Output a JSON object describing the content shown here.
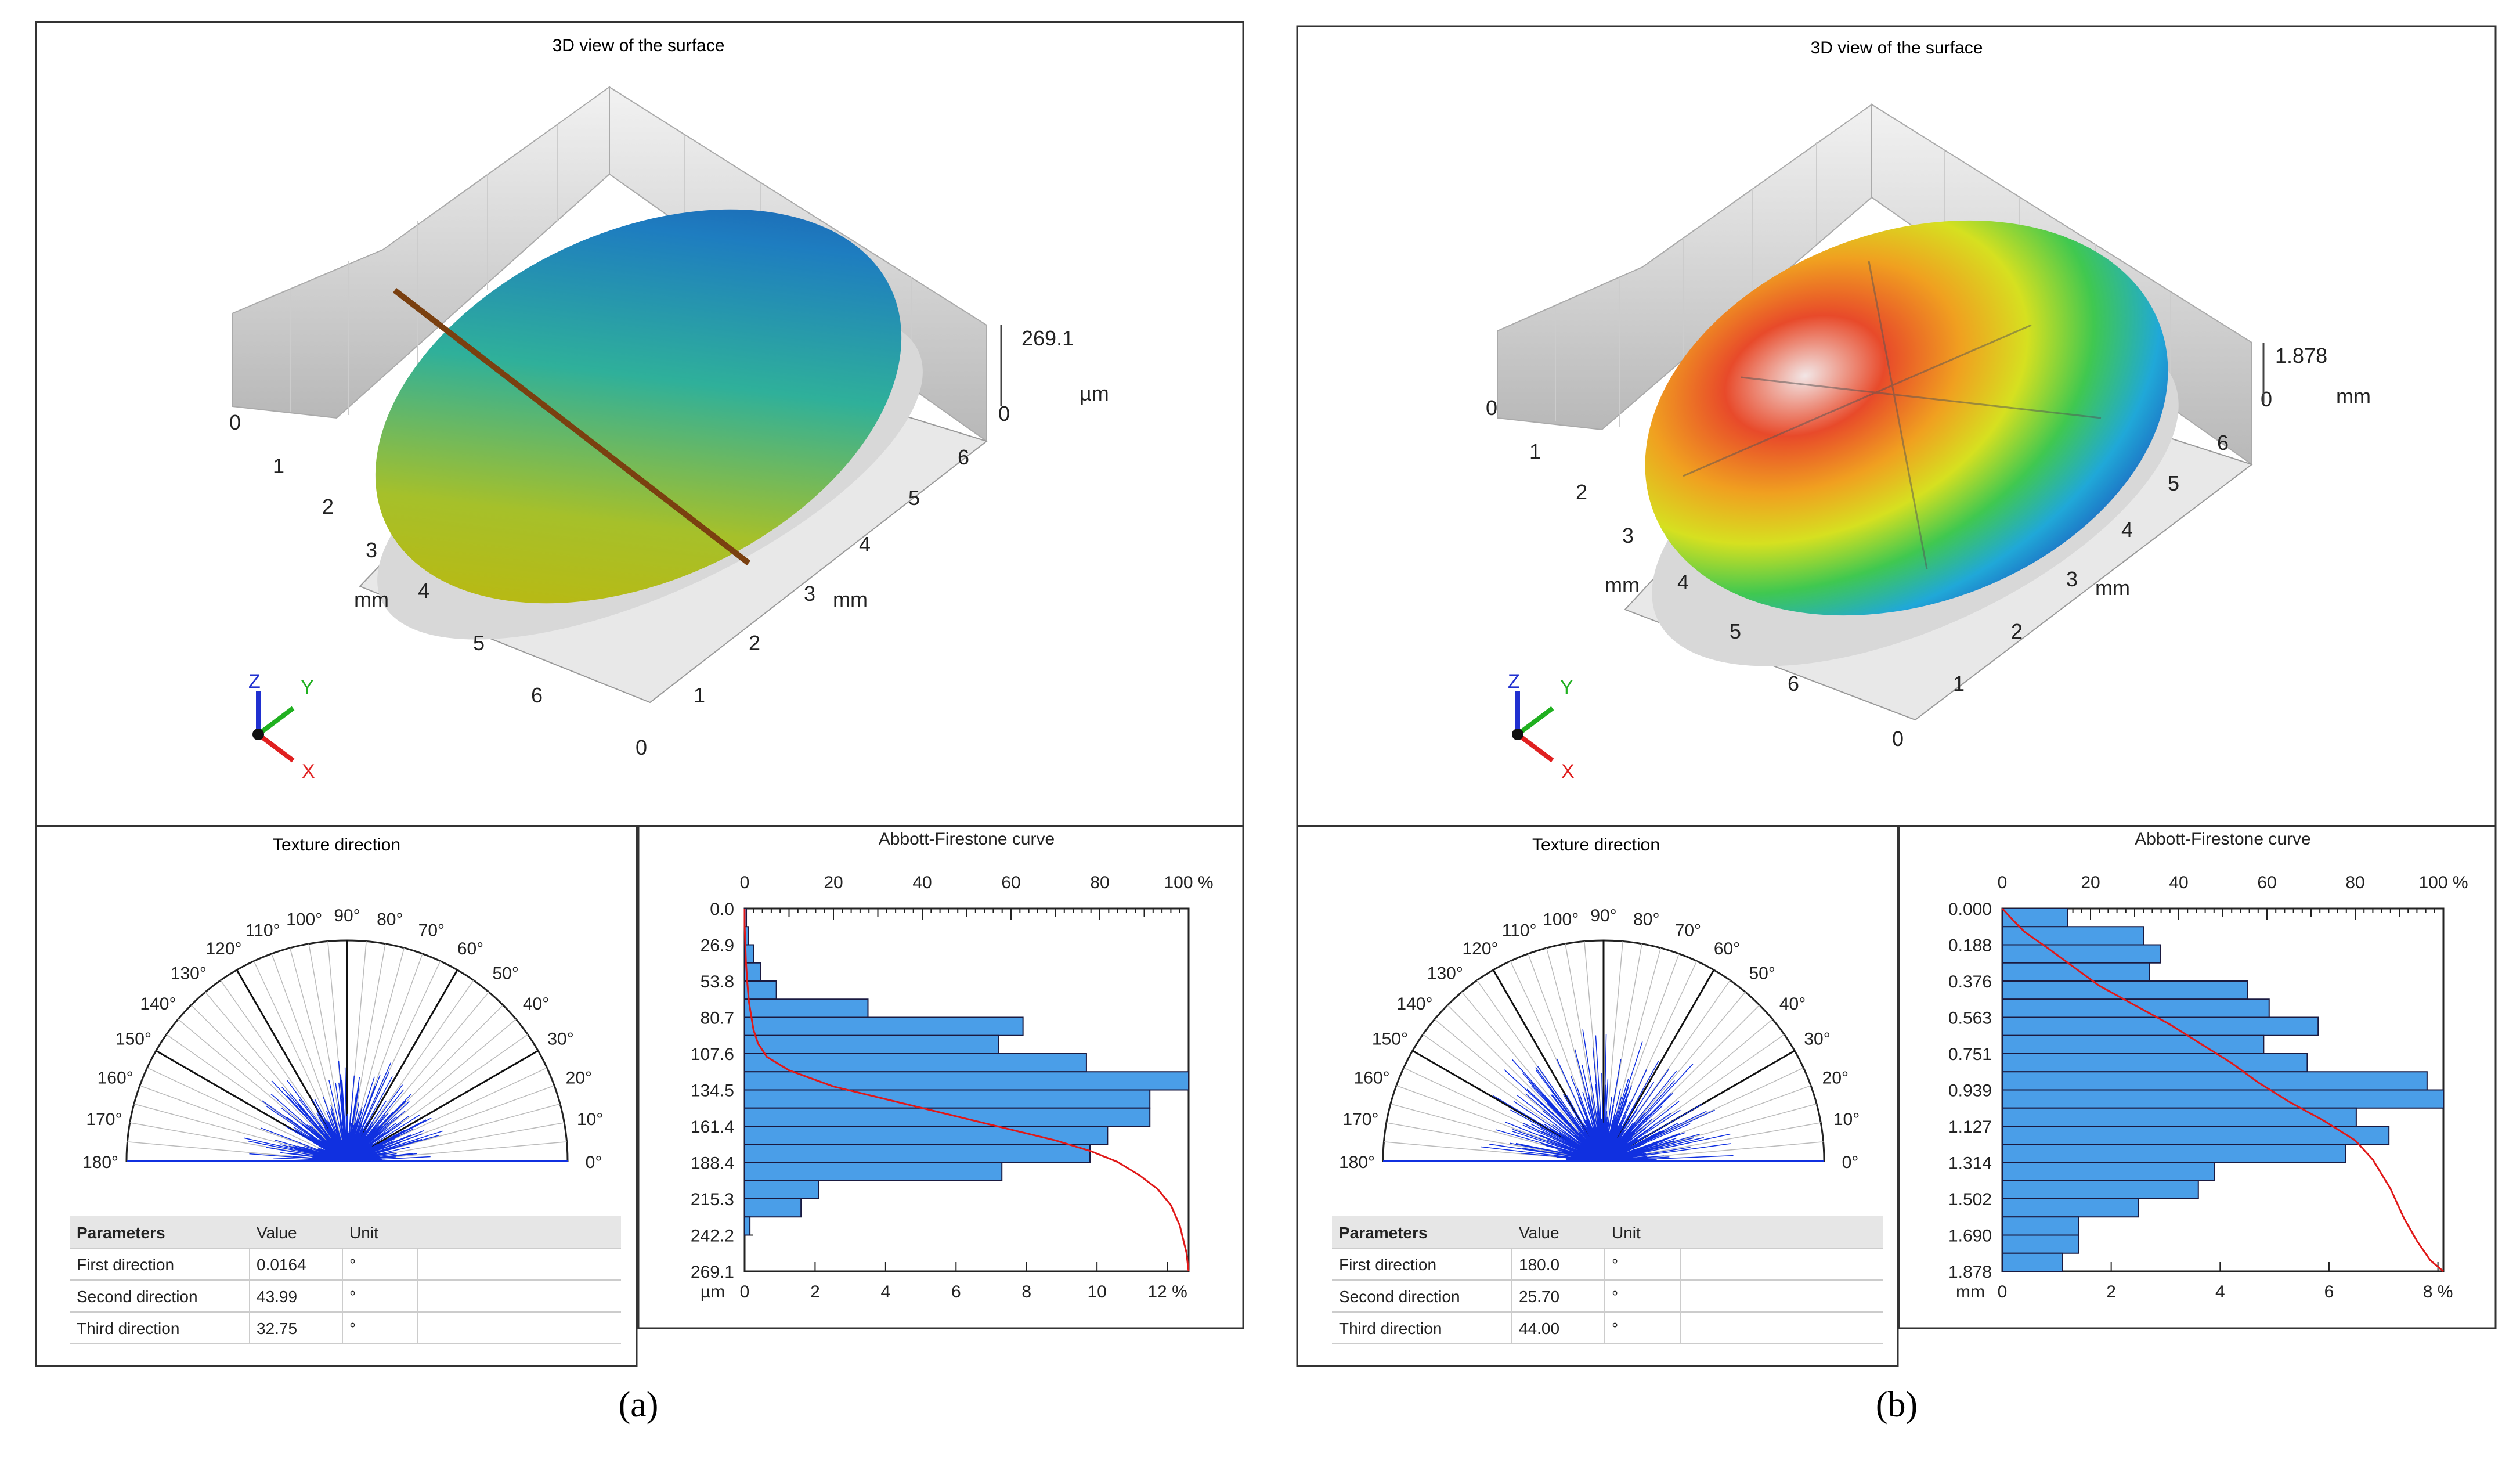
{
  "panels": [
    {
      "caption": "(a)",
      "surface": {
        "title": "3D view of the surface",
        "z_max_label": "269.1",
        "z_min_label": "0",
        "z_unit": "µm",
        "x_ticks": [
          "0",
          "1",
          "2",
          "3",
          "4",
          "5",
          "6"
        ],
        "y_ticks": [
          "0",
          "1",
          "2",
          "3",
          "4",
          "5",
          "6"
        ],
        "x_unit": "mm",
        "y_unit": "mm",
        "axes": [
          "Z",
          "Y",
          "X"
        ]
      },
      "texture": {
        "title": "Texture direction",
        "angles": [
          "0°",
          "10°",
          "20°",
          "30°",
          "40°",
          "50°",
          "60°",
          "70°",
          "80°",
          "90°",
          "100°",
          "110°",
          "120°",
          "130°",
          "140°",
          "150°",
          "160°",
          "170°",
          "180°"
        ],
        "headers": [
          "Parameters",
          "Value",
          "Unit"
        ],
        "rows": [
          {
            "name": "First  direction",
            "value": "0.0164",
            "unit": "°"
          },
          {
            "name": "Second  direction",
            "value": "43.99",
            "unit": "°"
          },
          {
            "name": "Third  direction",
            "value": "32.75",
            "unit": "°"
          }
        ]
      }
    },
    {
      "caption": "(b)",
      "surface": {
        "title": "3D view of the surface",
        "z_max_label": "1.878",
        "z_min_label": "0",
        "z_unit": "mm",
        "x_ticks": [
          "0",
          "1",
          "2",
          "3",
          "4",
          "5",
          "6"
        ],
        "y_ticks": [
          "0",
          "1",
          "2",
          "3",
          "4",
          "5",
          "6"
        ],
        "x_unit": "mm",
        "y_unit": "mm",
        "axes": [
          "Z",
          "Y",
          "X"
        ]
      },
      "texture": {
        "title": "Texture direction",
        "angles": [
          "0°",
          "10°",
          "20°",
          "30°",
          "40°",
          "50°",
          "60°",
          "70°",
          "80°",
          "90°",
          "100°",
          "110°",
          "120°",
          "130°",
          "140°",
          "150°",
          "160°",
          "170°",
          "180°"
        ],
        "headers": [
          "Parameters",
          "Value",
          "Unit"
        ],
        "rows": [
          {
            "name": "First  direction",
            "value": "180.0",
            "unit": "°"
          },
          {
            "name": "Second  direction",
            "value": "25.70",
            "unit": "°"
          },
          {
            "name": "Third  direction",
            "value": "44.00",
            "unit": "°"
          }
        ]
      }
    }
  ],
  "chart_data": [
    {
      "type": "bar",
      "orientation": "horizontal",
      "title": "Abbott-Firestone curve",
      "top_axis_ticks": [
        "0",
        "20",
        "40",
        "60",
        "80",
        "100 %"
      ],
      "bottom_axis_ticks": [
        "0",
        "2",
        "4",
        "6",
        "8",
        "10",
        "12 %"
      ],
      "y_unit": "µm",
      "y_tick_labels": [
        "0.0",
        "26.9",
        "53.8",
        "80.7",
        "107.6",
        "134.5",
        "161.4",
        "188.4",
        "215.3",
        "242.2",
        "269.1"
      ],
      "ylim": [
        0,
        269.1
      ],
      "xlim_bottom": [
        0,
        12.6
      ],
      "bin_width": 13.455,
      "values": [
        0.05,
        0.1,
        0.25,
        0.45,
        0.9,
        3.5,
        7.9,
        7.2,
        9.7,
        12.6,
        11.5,
        11.5,
        10.3,
        9.8,
        7.3,
        2.1,
        1.6,
        0.15
      ],
      "curve": [
        [
          0,
          0
        ],
        [
          0.01,
          13
        ],
        [
          0.3,
          40
        ],
        [
          0.6,
          55
        ],
        [
          1,
          70
        ],
        [
          2,
          90
        ],
        [
          3,
          100
        ],
        [
          5,
          110
        ],
        [
          10,
          120
        ],
        [
          20,
          132
        ],
        [
          30,
          140
        ],
        [
          40,
          148
        ],
        [
          50,
          156
        ],
        [
          60,
          164
        ],
        [
          70,
          172
        ],
        [
          78,
          180
        ],
        [
          84,
          188
        ],
        [
          89,
          198
        ],
        [
          93,
          208
        ],
        [
          96,
          220
        ],
        [
          98,
          235
        ],
        [
          99.5,
          255
        ],
        [
          100,
          269.1
        ]
      ]
    },
    {
      "type": "bar",
      "orientation": "horizontal",
      "title": "Abbott-Firestone curve",
      "top_axis_ticks": [
        "0",
        "20",
        "40",
        "60",
        "80",
        "100 %"
      ],
      "bottom_axis_ticks": [
        "0",
        "2",
        "4",
        "6",
        "8 %"
      ],
      "y_unit": "mm",
      "y_tick_labels": [
        "0.000",
        "0.188",
        "0.376",
        "0.563",
        "0.751",
        "0.939",
        "1.127",
        "1.314",
        "1.502",
        "1.690",
        "1.878"
      ],
      "ylim": [
        0,
        1.878
      ],
      "xlim_bottom": [
        0,
        8.1
      ],
      "bin_width": 0.0939,
      "values": [
        1.2,
        2.6,
        2.9,
        2.7,
        4.5,
        4.9,
        5.8,
        4.8,
        5.6,
        7.8,
        8.1,
        6.5,
        7.1,
        6.3,
        3.9,
        3.6,
        2.5,
        1.4,
        1.4,
        1.1
      ],
      "curve": [
        [
          0,
          0
        ],
        [
          2,
          0.05
        ],
        [
          5,
          0.12
        ],
        [
          10,
          0.2
        ],
        [
          16,
          0.3
        ],
        [
          22,
          0.4
        ],
        [
          30,
          0.5
        ],
        [
          38,
          0.6
        ],
        [
          45,
          0.7
        ],
        [
          52,
          0.8
        ],
        [
          58,
          0.9
        ],
        [
          65,
          1.0
        ],
        [
          73,
          1.1
        ],
        [
          80,
          1.2
        ],
        [
          84,
          1.3
        ],
        [
          88,
          1.45
        ],
        [
          91,
          1.6
        ],
        [
          94,
          1.72
        ],
        [
          97,
          1.82
        ],
        [
          100,
          1.878
        ]
      ]
    }
  ]
}
